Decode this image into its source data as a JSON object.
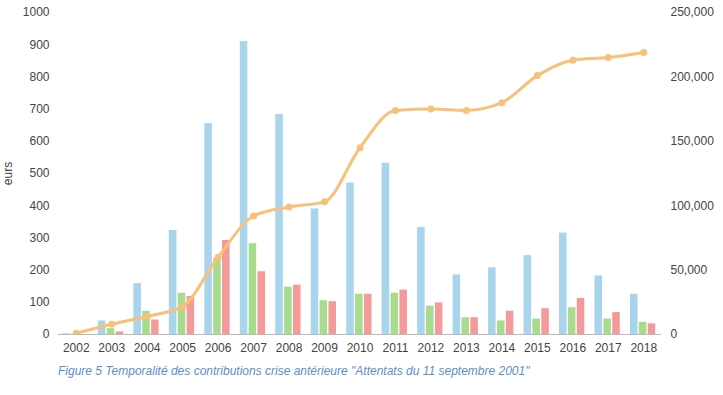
{
  "chart_data": {
    "type": "bar",
    "caption": "Figure 5 Temporalité des contributions crise antérieure \"Attentats du 11 septembre 2001\"",
    "y_label": "eurs",
    "categories": [
      "2002",
      "2003",
      "2004",
      "2005",
      "2006",
      "2007",
      "2008",
      "2009",
      "2010",
      "2011",
      "2012",
      "2013",
      "2014",
      "2015",
      "2016",
      "2017",
      "2018"
    ],
    "series": [
      {
        "type": "bar",
        "color": "#a8d4ec",
        "values": [
          2,
          42,
          158,
          323,
          655,
          910,
          683,
          390,
          470,
          532,
          332,
          185,
          207,
          245,
          315,
          182,
          125
        ]
      },
      {
        "type": "bar",
        "color": "#a9db8c",
        "values": [
          0,
          18,
          72,
          128,
          237,
          282,
          147,
          105,
          125,
          128,
          88,
          52,
          42,
          48,
          83,
          48,
          38
        ]
      },
      {
        "type": "bar",
        "color": "#f59a9a",
        "values": [
          0,
          8,
          45,
          118,
          292,
          195,
          153,
          102,
          125,
          138,
          98,
          52,
          72,
          80,
          112,
          68,
          33
        ]
      },
      {
        "type": "line",
        "axis": "y2",
        "color": "#f7c17a",
        "marker": "circle",
        "values": [
          1000,
          8000,
          14000,
          22000,
          60000,
          92000,
          99000,
          103000,
          145000,
          174000,
          175000,
          174000,
          180000,
          201000,
          213000,
          215000,
          219000
        ]
      }
    ],
    "ylim": [
      0,
      1000
    ],
    "yticks": [
      0,
      100,
      200,
      300,
      400,
      500,
      600,
      700,
      800,
      900,
      1000
    ],
    "y2lim": [
      0,
      250000
    ],
    "y2ticks": [
      0,
      {
        "value": 50000,
        "label": "50,000"
      },
      {
        "value": 100000,
        "label": "100,000"
      },
      {
        "value": 150000,
        "label": "150,000"
      },
      {
        "value": 200000,
        "label": "200,000"
      },
      {
        "value": 250000,
        "label": "250,000"
      }
    ],
    "grid": false
  }
}
